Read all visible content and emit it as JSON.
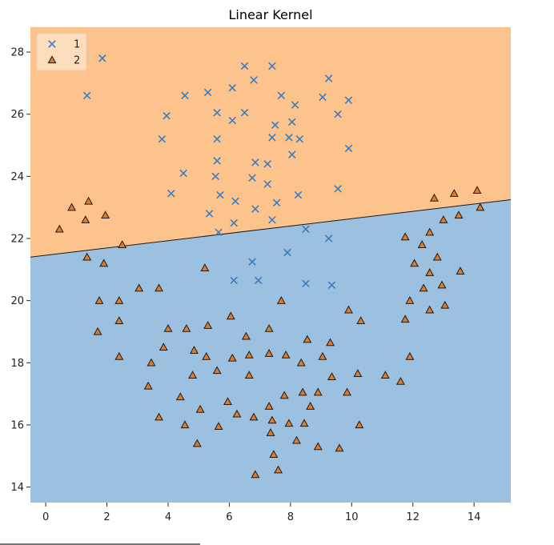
{
  "chart_data": {
    "type": "scatter",
    "title": "Linear Kernel",
    "xlabel": "",
    "ylabel": "",
    "xlim": [
      -0.5,
      15.2
    ],
    "ylim": [
      13.5,
      28.8
    ],
    "xticks": [
      0,
      2,
      4,
      6,
      8,
      10,
      12,
      14
    ],
    "yticks": [
      14,
      16,
      18,
      20,
      22,
      24,
      26,
      28
    ],
    "grid": false,
    "legend_position": "top-left",
    "decision_boundary": {
      "x": [
        -0.5,
        15.2
      ],
      "y": [
        21.4,
        23.25
      ]
    },
    "regions": [
      {
        "class": "1",
        "side": "above",
        "color": "#fdc38d"
      },
      {
        "class": "2",
        "side": "below",
        "color": "#9cc0df"
      }
    ],
    "series": [
      {
        "name": "1",
        "marker": "x",
        "color": "#3a7dbf",
        "points": [
          [
            1.35,
            26.6
          ],
          [
            1.85,
            27.8
          ],
          [
            3.8,
            25.2
          ],
          [
            3.95,
            25.95
          ],
          [
            4.55,
            26.6
          ],
          [
            4.5,
            24.1
          ],
          [
            4.1,
            23.45
          ],
          [
            5.3,
            26.7
          ],
          [
            5.6,
            26.05
          ],
          [
            5.6,
            25.2
          ],
          [
            5.6,
            24.5
          ],
          [
            5.55,
            24.0
          ],
          [
            5.7,
            23.4
          ],
          [
            5.35,
            22.8
          ],
          [
            5.65,
            22.2
          ],
          [
            6.1,
            26.85
          ],
          [
            6.1,
            25.8
          ],
          [
            6.5,
            26.05
          ],
          [
            6.5,
            27.55
          ],
          [
            6.2,
            23.2
          ],
          [
            6.15,
            22.5
          ],
          [
            6.8,
            27.1
          ],
          [
            6.85,
            24.45
          ],
          [
            6.75,
            23.95
          ],
          [
            6.85,
            22.95
          ],
          [
            7.25,
            24.4
          ],
          [
            7.25,
            23.75
          ],
          [
            7.4,
            27.55
          ],
          [
            7.5,
            25.65
          ],
          [
            7.4,
            25.25
          ],
          [
            7.4,
            22.6
          ],
          [
            7.55,
            23.15
          ],
          [
            7.7,
            26.6
          ],
          [
            7.95,
            25.25
          ],
          [
            8.05,
            25.75
          ],
          [
            8.15,
            26.3
          ],
          [
            8.05,
            24.7
          ],
          [
            8.3,
            25.2
          ],
          [
            8.25,
            23.4
          ],
          [
            9.05,
            26.55
          ],
          [
            9.25,
            27.15
          ],
          [
            9.55,
            26.0
          ],
          [
            9.9,
            26.45
          ],
          [
            9.9,
            24.9
          ],
          [
            9.55,
            23.6
          ],
          [
            8.5,
            22.3
          ],
          [
            9.25,
            22.0
          ],
          [
            7.9,
            21.55
          ],
          [
            6.75,
            21.25
          ],
          [
            6.15,
            20.65
          ],
          [
            6.95,
            20.65
          ],
          [
            8.5,
            20.55
          ],
          [
            9.35,
            20.5
          ]
        ]
      },
      {
        "name": "2",
        "marker": "triangle",
        "color": "#e07b2a",
        "points": [
          [
            0.45,
            22.3
          ],
          [
            0.85,
            23.0
          ],
          [
            1.3,
            22.6
          ],
          [
            1.4,
            23.2
          ],
          [
            1.95,
            22.75
          ],
          [
            1.35,
            21.4
          ],
          [
            2.5,
            21.8
          ],
          [
            1.9,
            21.2
          ],
          [
            1.75,
            20.0
          ],
          [
            1.7,
            19.0
          ],
          [
            2.4,
            20.0
          ],
          [
            2.4,
            19.35
          ],
          [
            2.4,
            18.2
          ],
          [
            3.05,
            20.4
          ],
          [
            3.7,
            20.4
          ],
          [
            3.35,
            17.25
          ],
          [
            3.45,
            18.0
          ],
          [
            3.7,
            16.25
          ],
          [
            3.85,
            18.5
          ],
          [
            4.0,
            19.1
          ],
          [
            4.4,
            16.9
          ],
          [
            4.55,
            16.0
          ],
          [
            4.6,
            19.1
          ],
          [
            4.8,
            17.6
          ],
          [
            4.85,
            18.4
          ],
          [
            4.95,
            15.4
          ],
          [
            5.05,
            16.5
          ],
          [
            5.25,
            18.2
          ],
          [
            5.3,
            19.2
          ],
          [
            5.2,
            21.05
          ],
          [
            5.6,
            17.75
          ],
          [
            5.65,
            15.95
          ],
          [
            5.95,
            16.75
          ],
          [
            6.1,
            18.15
          ],
          [
            6.05,
            19.5
          ],
          [
            6.25,
            16.35
          ],
          [
            6.55,
            18.85
          ],
          [
            6.65,
            18.25
          ],
          [
            6.65,
            17.6
          ],
          [
            6.8,
            16.25
          ],
          [
            6.85,
            14.4
          ],
          [
            7.3,
            19.1
          ],
          [
            7.3,
            18.3
          ],
          [
            7.3,
            16.6
          ],
          [
            7.35,
            15.75
          ],
          [
            7.4,
            16.15
          ],
          [
            7.45,
            15.05
          ],
          [
            7.6,
            14.55
          ],
          [
            7.7,
            20.0
          ],
          [
            7.85,
            18.25
          ],
          [
            7.8,
            16.95
          ],
          [
            7.95,
            16.05
          ],
          [
            8.2,
            15.5
          ],
          [
            8.35,
            18.0
          ],
          [
            8.4,
            17.05
          ],
          [
            8.45,
            16.05
          ],
          [
            8.55,
            18.75
          ],
          [
            8.65,
            16.6
          ],
          [
            8.9,
            17.05
          ],
          [
            8.9,
            15.3
          ],
          [
            9.05,
            18.2
          ],
          [
            9.3,
            18.65
          ],
          [
            9.35,
            17.55
          ],
          [
            9.6,
            15.25
          ],
          [
            9.85,
            17.05
          ],
          [
            9.9,
            19.7
          ],
          [
            10.2,
            17.65
          ],
          [
            10.25,
            16.0
          ],
          [
            10.3,
            19.35
          ],
          [
            11.1,
            17.6
          ],
          [
            11.6,
            17.4
          ],
          [
            11.75,
            19.4
          ],
          [
            11.75,
            22.05
          ],
          [
            11.9,
            20.0
          ],
          [
            11.9,
            18.2
          ],
          [
            12.05,
            21.2
          ],
          [
            12.3,
            21.8
          ],
          [
            12.35,
            20.4
          ],
          [
            12.55,
            22.2
          ],
          [
            12.55,
            20.9
          ],
          [
            12.55,
            19.7
          ],
          [
            12.7,
            23.3
          ],
          [
            12.8,
            21.4
          ],
          [
            12.95,
            20.5
          ],
          [
            13.0,
            22.6
          ],
          [
            13.05,
            19.85
          ],
          [
            13.35,
            23.45
          ],
          [
            13.5,
            22.75
          ],
          [
            13.55,
            20.95
          ],
          [
            14.1,
            23.55
          ],
          [
            14.2,
            23.0
          ]
        ]
      }
    ]
  }
}
